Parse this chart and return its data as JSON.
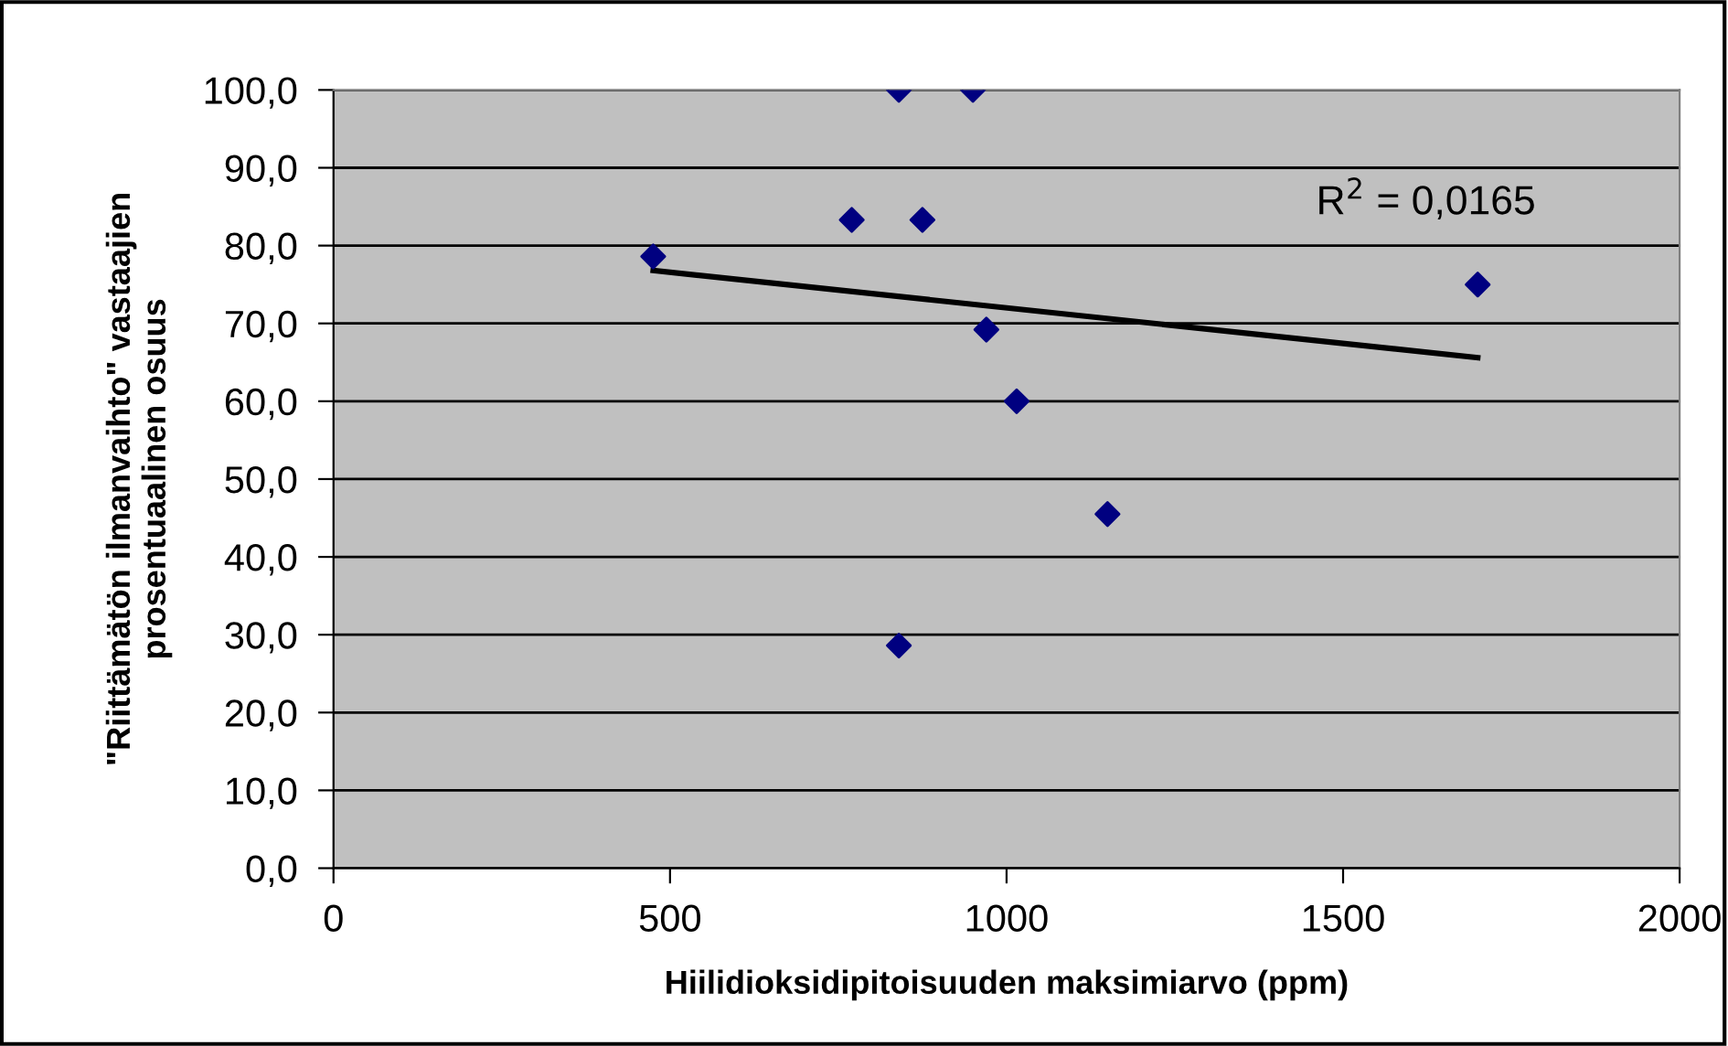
{
  "chart_data": {
    "type": "scatter",
    "xlabel": "Hiilidioksidipitoisuuden maksimiarvo (ppm)",
    "ylabel": "\"Riittämätön ilmanvaihto\" vastaajien\nprosentuaalinen osuus",
    "annotations": [
      "R$^{2}$ = 0,0165"
    ],
    "marker": "diamond",
    "grid": "y",
    "legend": false,
    "xlim": [
      0,
      2000
    ],
    "xticks": [
      0,
      500,
      1000,
      1500,
      2000
    ],
    "ylim": [
      0,
      100
    ],
    "yticks": [
      {
        "value": 0,
        "label": "0,0"
      },
      {
        "value": 10,
        "label": "10,0"
      },
      {
        "value": 20,
        "label": "20,0"
      },
      {
        "value": 30,
        "label": "30,0"
      },
      {
        "value": 40,
        "label": "40,0"
      },
      {
        "value": 50,
        "label": "50,0"
      },
      {
        "value": 60,
        "label": "60,0"
      },
      {
        "value": 70,
        "label": "70,0"
      },
      {
        "value": 80,
        "label": "80,0"
      },
      {
        "value": 90,
        "label": "90,0"
      },
      {
        "value": 100,
        "label": "100,0"
      }
    ],
    "series": [
      {
        "color": "#000080",
        "x": [
          475,
          770,
          840,
          875,
          950,
          970,
          1015,
          1150,
          840,
          1700
        ],
        "values": [
          78.6,
          83.3,
          100,
          83.3,
          100,
          69.2,
          60.0,
          45.5,
          28.6,
          75.0
        ]
      },
      {
        "type": "line",
        "marker": "none",
        "color": "#000000",
        "x": [
          475,
          1700
        ],
        "values": [
          76.8,
          65.6
        ]
      }
    ]
  }
}
